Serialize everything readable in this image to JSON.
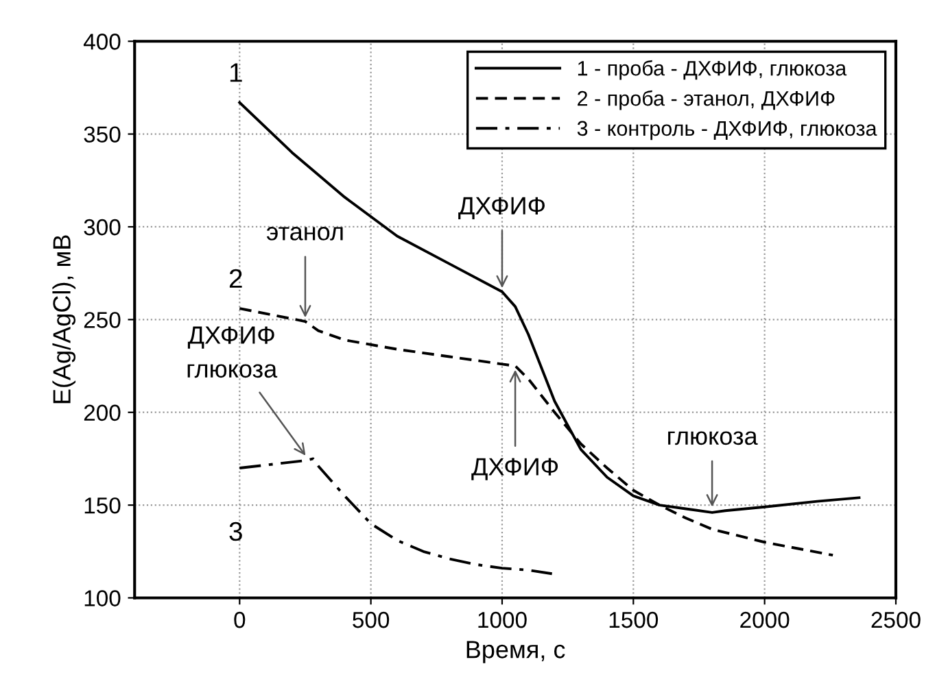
{
  "chart_data": {
    "type": "line",
    "xlabel": "Время, с",
    "ylabel": "E(Ag/AgCl), мВ",
    "xlim": [
      -400,
      2500
    ],
    "xticks": [
      0,
      500,
      1000,
      1500,
      2000,
      2500
    ],
    "ylim": [
      100,
      400
    ],
    "yticks": [
      100,
      150,
      200,
      250,
      300,
      350,
      400
    ],
    "grid": true,
    "legend": "top right",
    "marker": "none",
    "series": [
      {
        "name": "1 - проба - ДХФИФ, глюкоза",
        "color": "#000000",
        "line_style": "solid",
        "x": [
          0,
          200,
          400,
          600,
          800,
          1000,
          1050,
          1100,
          1200,
          1300,
          1400,
          1500,
          1600,
          1700,
          1800,
          1850,
          2000,
          2200,
          2360
        ],
        "values": [
          367,
          340,
          316,
          295,
          280,
          265,
          257,
          242,
          206,
          180,
          165,
          155,
          150,
          148,
          146,
          147,
          149,
          152,
          154
        ]
      },
      {
        "name": "2 - проба - этанол, ДХФИФ",
        "color": "#000000",
        "line_style": "dashed",
        "x": [
          0,
          250,
          300,
          400,
          600,
          800,
          1000,
          1050,
          1100,
          1200,
          1300,
          1400,
          1500,
          1600,
          1700,
          1800,
          2000,
          2260
        ],
        "values": [
          256,
          249,
          244,
          239,
          234,
          230,
          226,
          225,
          218,
          200,
          183,
          170,
          158,
          150,
          143,
          137,
          130,
          123
        ]
      },
      {
        "name": "3 - контроль - ДХФИФ, глюкоза",
        "color": "#000000",
        "line_style": "dashdot",
        "x": [
          0,
          250,
          280,
          300,
          400,
          500,
          600,
          700,
          800,
          900,
          1000,
          1100,
          1190
        ],
        "values": [
          170,
          174,
          175,
          171,
          155,
          140,
          131,
          125,
          121,
          118,
          116,
          115,
          113
        ]
      }
    ],
    "annotations": [
      {
        "text": "1",
        "x": 0,
        "y": 367
      },
      {
        "text": "2",
        "x": 0,
        "y": 256
      },
      {
        "text": "3",
        "x": 0,
        "y": 170
      },
      {
        "text": "ДХФИФ",
        "x": 1000,
        "y": 265
      },
      {
        "text": "этанол",
        "x": 250,
        "y": 249
      },
      {
        "text": "ДХФИФ\nглюкоза",
        "x": 260,
        "y": 175
      },
      {
        "text": "ДХФИФ",
        "x": 1050,
        "y": 225
      },
      {
        "text": "глюкоза",
        "x": 1800,
        "y": 147
      }
    ]
  }
}
